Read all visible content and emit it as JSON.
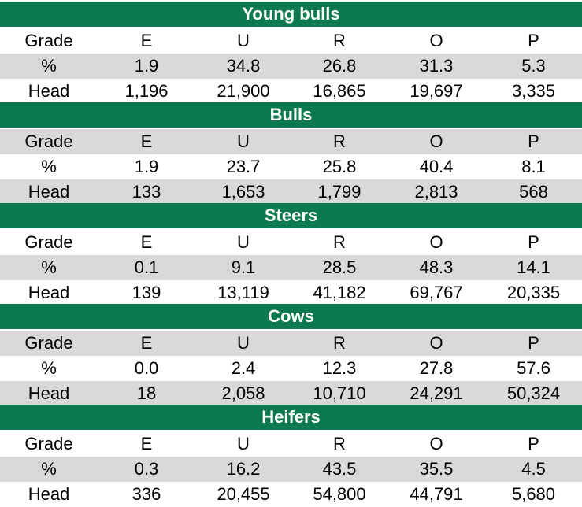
{
  "chart_data": {
    "type": "table",
    "columns": [
      "E",
      "U",
      "R",
      "O",
      "P"
    ],
    "sections": [
      {
        "title": "Young bulls",
        "rows": [
          {
            "label": "Grade",
            "values": [
              "E",
              "U",
              "R",
              "O",
              "P"
            ]
          },
          {
            "label": "%",
            "values": [
              "1.9",
              "34.8",
              "26.8",
              "31.3",
              "5.3"
            ]
          },
          {
            "label": "Head",
            "values": [
              "1,196",
              "21,900",
              "16,865",
              "19,697",
              "3,335"
            ]
          }
        ]
      },
      {
        "title": "Bulls",
        "rows": [
          {
            "label": "Grade",
            "values": [
              "E",
              "U",
              "R",
              "O",
              "P"
            ]
          },
          {
            "label": "%",
            "values": [
              "1.9",
              "23.7",
              "25.8",
              "40.4",
              "8.1"
            ]
          },
          {
            "label": "Head",
            "values": [
              "133",
              "1,653",
              "1,799",
              "2,813",
              "568"
            ]
          }
        ]
      },
      {
        "title": "Steers",
        "rows": [
          {
            "label": "Grade",
            "values": [
              "E",
              "U",
              "R",
              "O",
              "P"
            ]
          },
          {
            "label": "%",
            "values": [
              "0.1",
              "9.1",
              "28.5",
              "48.3",
              "14.1"
            ]
          },
          {
            "label": "Head",
            "values": [
              "139",
              "13,119",
              "41,182",
              "69,767",
              "20,335"
            ]
          }
        ]
      },
      {
        "title": "Cows",
        "rows": [
          {
            "label": "Grade",
            "values": [
              "E",
              "U",
              "R",
              "O",
              "P"
            ]
          },
          {
            "label": "%",
            "values": [
              "0.0",
              "2.4",
              "12.3",
              "27.8",
              "57.6"
            ]
          },
          {
            "label": "Head",
            "values": [
              "18",
              "2,058",
              "10,710",
              "24,291",
              "50,324"
            ]
          }
        ]
      },
      {
        "title": "Heifers",
        "rows": [
          {
            "label": "Grade",
            "values": [
              "E",
              "U",
              "R",
              "O",
              "P"
            ]
          },
          {
            "label": "%",
            "values": [
              "0.3",
              "16.2",
              "43.5",
              "35.5",
              "4.5"
            ]
          },
          {
            "label": "Head",
            "values": [
              "336",
              "20,455",
              "54,800",
              "44,791",
              "5,680"
            ]
          }
        ]
      }
    ],
    "colors": {
      "header_bg": "#0c7a4e",
      "header_text": "#ffffff",
      "stripe_grey": "#d9d9d9",
      "stripe_white": "#ffffff"
    }
  }
}
